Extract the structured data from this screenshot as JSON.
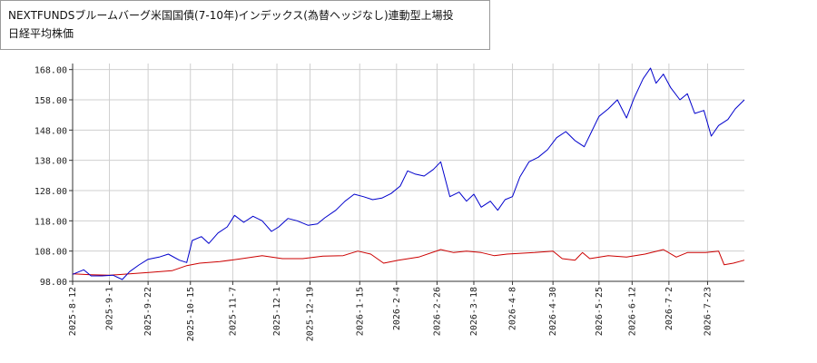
{
  "legend": {
    "series_a": "NEXTFUNDSブルームバーグ米国国債(7-10年)インデックス(為替ヘッジなし)連動型上場投",
    "series_b": "日経平均株価"
  },
  "colors": {
    "series_a": "#0000cc",
    "series_b": "#cc0000",
    "grid": "#cfcfcf",
    "axis": "#333333"
  },
  "chart_data": {
    "type": "line",
    "x_type": "date",
    "xlim": [
      "2025-08-12",
      "2026-08-12"
    ],
    "ylim": [
      98,
      170
    ],
    "grid": true,
    "y_ticks": [
      "98.00",
      "108.00",
      "118.00",
      "128.00",
      "138.00",
      "148.00",
      "158.00",
      "168.00"
    ],
    "x_ticks": [
      "2025-8-12",
      "2025-9-1",
      "2025-9-22",
      "2025-10-15",
      "2025-11-7",
      "2025-12-1",
      "2025-12-19",
      "2026-1-15",
      "2026-2-4",
      "2026-2-26",
      "2026-3-18",
      "2026-4-8",
      "2026-4-30",
      "2026-5-25",
      "2026-6-12",
      "2026-7-2",
      "2026-7-23"
    ],
    "series": [
      {
        "name": "NEXTFUNDSブルームバーグ米国国債(7-10年)インデックス(為替ヘッジなし)連動型上場投",
        "color": "#0000cc",
        "points": [
          [
            "2025-08-12",
            100.3
          ],
          [
            "2025-08-18",
            101.8
          ],
          [
            "2025-08-22",
            99.8
          ],
          [
            "2025-08-28",
            99.8
          ],
          [
            "2025-09-03",
            100.0
          ],
          [
            "2025-09-08",
            98.6
          ],
          [
            "2025-09-12",
            101.2
          ],
          [
            "2025-09-17",
            103.4
          ],
          [
            "2025-09-22",
            105.3
          ],
          [
            "2025-09-28",
            106.0
          ],
          [
            "2025-10-03",
            107.0
          ],
          [
            "2025-10-09",
            105.0
          ],
          [
            "2025-10-13",
            104.2
          ],
          [
            "2025-10-16",
            111.5
          ],
          [
            "2025-10-21",
            112.8
          ],
          [
            "2025-10-25",
            110.5
          ],
          [
            "2025-10-30",
            114.0
          ],
          [
            "2025-11-04",
            116.0
          ],
          [
            "2025-11-08",
            119.8
          ],
          [
            "2025-11-13",
            117.5
          ],
          [
            "2025-11-18",
            119.5
          ],
          [
            "2025-11-23",
            118.0
          ],
          [
            "2025-11-28",
            114.5
          ],
          [
            "2025-12-02",
            116.0
          ],
          [
            "2025-12-07",
            118.8
          ],
          [
            "2025-12-12",
            118.0
          ],
          [
            "2025-12-18",
            116.5
          ],
          [
            "2025-12-23",
            117.0
          ],
          [
            "2025-12-27",
            119.0
          ],
          [
            "2026-01-02",
            121.5
          ],
          [
            "2026-01-07",
            124.5
          ],
          [
            "2026-01-12",
            126.8
          ],
          [
            "2026-01-17",
            126.0
          ],
          [
            "2026-01-22",
            125.0
          ],
          [
            "2026-01-27",
            125.5
          ],
          [
            "2026-02-01",
            127.0
          ],
          [
            "2026-02-06",
            129.5
          ],
          [
            "2026-02-10",
            134.5
          ],
          [
            "2026-02-14",
            133.5
          ],
          [
            "2026-02-19",
            132.8
          ],
          [
            "2026-02-24",
            135.0
          ],
          [
            "2026-02-28",
            137.5
          ],
          [
            "2026-03-05",
            126.0
          ],
          [
            "2026-03-10",
            127.5
          ],
          [
            "2026-03-14",
            124.5
          ],
          [
            "2026-03-18",
            126.8
          ],
          [
            "2026-03-22",
            122.5
          ],
          [
            "2026-03-27",
            124.5
          ],
          [
            "2026-03-31",
            121.5
          ],
          [
            "2026-04-04",
            125.0
          ],
          [
            "2026-04-08",
            126.0
          ],
          [
            "2026-04-12",
            132.5
          ],
          [
            "2026-04-17",
            137.5
          ],
          [
            "2026-04-22",
            139.0
          ],
          [
            "2026-04-27",
            141.5
          ],
          [
            "2026-05-02",
            145.5
          ],
          [
            "2026-05-07",
            147.5
          ],
          [
            "2026-05-12",
            144.5
          ],
          [
            "2026-05-17",
            142.5
          ],
          [
            "2026-05-21",
            147.5
          ],
          [
            "2026-05-25",
            152.5
          ],
          [
            "2026-05-30",
            155.0
          ],
          [
            "2026-06-04",
            158.0
          ],
          [
            "2026-06-09",
            152.0
          ],
          [
            "2026-06-13",
            158.5
          ],
          [
            "2026-06-18",
            165.0
          ],
          [
            "2026-06-22",
            168.5
          ],
          [
            "2026-06-25",
            163.5
          ],
          [
            "2026-06-29",
            166.5
          ],
          [
            "2026-07-03",
            162.0
          ],
          [
            "2026-07-08",
            158.0
          ],
          [
            "2026-07-12",
            160.0
          ],
          [
            "2026-07-16",
            153.5
          ],
          [
            "2026-07-21",
            154.5
          ],
          [
            "2026-07-25",
            146.0
          ],
          [
            "2026-07-29",
            149.5
          ],
          [
            "2026-08-03",
            151.5
          ],
          [
            "2026-08-07",
            155.0
          ],
          [
            "2026-08-12",
            158.0
          ]
        ]
      },
      {
        "name": "日経平均株価",
        "color": "#cc0000",
        "points": [
          [
            "2025-08-12",
            100.5
          ],
          [
            "2025-08-22",
            100.2
          ],
          [
            "2025-09-01",
            100.0
          ],
          [
            "2025-09-12",
            100.5
          ],
          [
            "2025-09-24",
            101.0
          ],
          [
            "2025-10-05",
            101.5
          ],
          [
            "2025-10-13",
            103.2
          ],
          [
            "2025-10-20",
            104.0
          ],
          [
            "2025-10-31",
            104.5
          ],
          [
            "2025-11-12",
            105.5
          ],
          [
            "2025-11-23",
            106.5
          ],
          [
            "2025-12-04",
            105.5
          ],
          [
            "2025-12-15",
            105.5
          ],
          [
            "2025-12-26",
            106.3
          ],
          [
            "2026-01-06",
            106.5
          ],
          [
            "2026-01-14",
            108.0
          ],
          [
            "2026-01-21",
            107.0
          ],
          [
            "2026-01-28",
            104.0
          ],
          [
            "2026-02-05",
            105.0
          ],
          [
            "2026-02-16",
            106.0
          ],
          [
            "2026-02-28",
            108.5
          ],
          [
            "2026-03-07",
            107.5
          ],
          [
            "2026-03-14",
            108.0
          ],
          [
            "2026-03-22",
            107.5
          ],
          [
            "2026-03-29",
            106.5
          ],
          [
            "2026-04-05",
            107.0
          ],
          [
            "2026-04-20",
            107.5
          ],
          [
            "2026-04-30",
            108.0
          ],
          [
            "2026-05-05",
            105.5
          ],
          [
            "2026-05-12",
            105.0
          ],
          [
            "2026-05-16",
            107.5
          ],
          [
            "2026-05-20",
            105.5
          ],
          [
            "2026-05-30",
            106.5
          ],
          [
            "2026-06-09",
            106.0
          ],
          [
            "2026-06-19",
            107.0
          ],
          [
            "2026-06-29",
            108.5
          ],
          [
            "2026-07-06",
            106.0
          ],
          [
            "2026-07-12",
            107.5
          ],
          [
            "2026-07-22",
            107.5
          ],
          [
            "2026-07-29",
            108.0
          ],
          [
            "2026-08-01",
            103.5
          ],
          [
            "2026-08-06",
            104.0
          ],
          [
            "2026-08-12",
            105.0
          ]
        ]
      }
    ]
  }
}
